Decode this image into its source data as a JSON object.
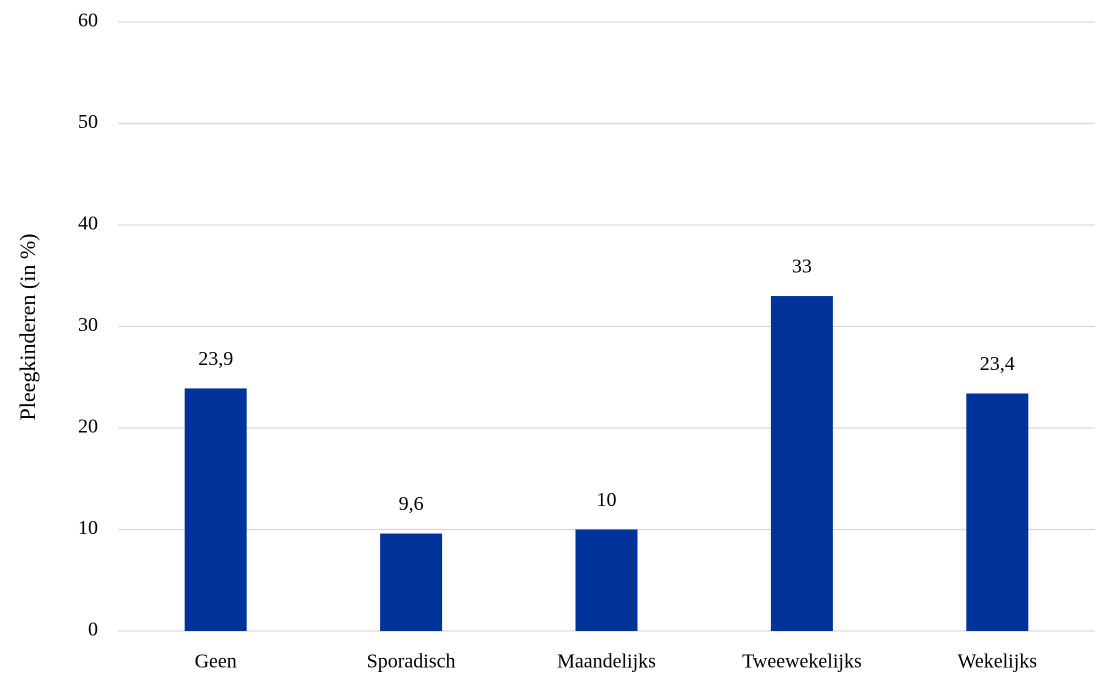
{
  "chart_data": {
    "type": "bar",
    "y_label": "Pleegkinderen (in %)",
    "categories": [
      "Geen",
      "Sporadisch",
      "Maandelijks",
      "Tweewekelijks",
      "Wekelijks"
    ],
    "values": [
      23.9,
      9.6,
      10,
      33,
      23.4
    ],
    "value_labels": [
      "23,9",
      "9,6",
      "10",
      "33",
      "23,4"
    ],
    "color": "#003399",
    "ylim": [
      0,
      60
    ],
    "yticks": [
      0,
      10,
      20,
      30,
      40,
      50,
      60
    ],
    "grid": true
  }
}
